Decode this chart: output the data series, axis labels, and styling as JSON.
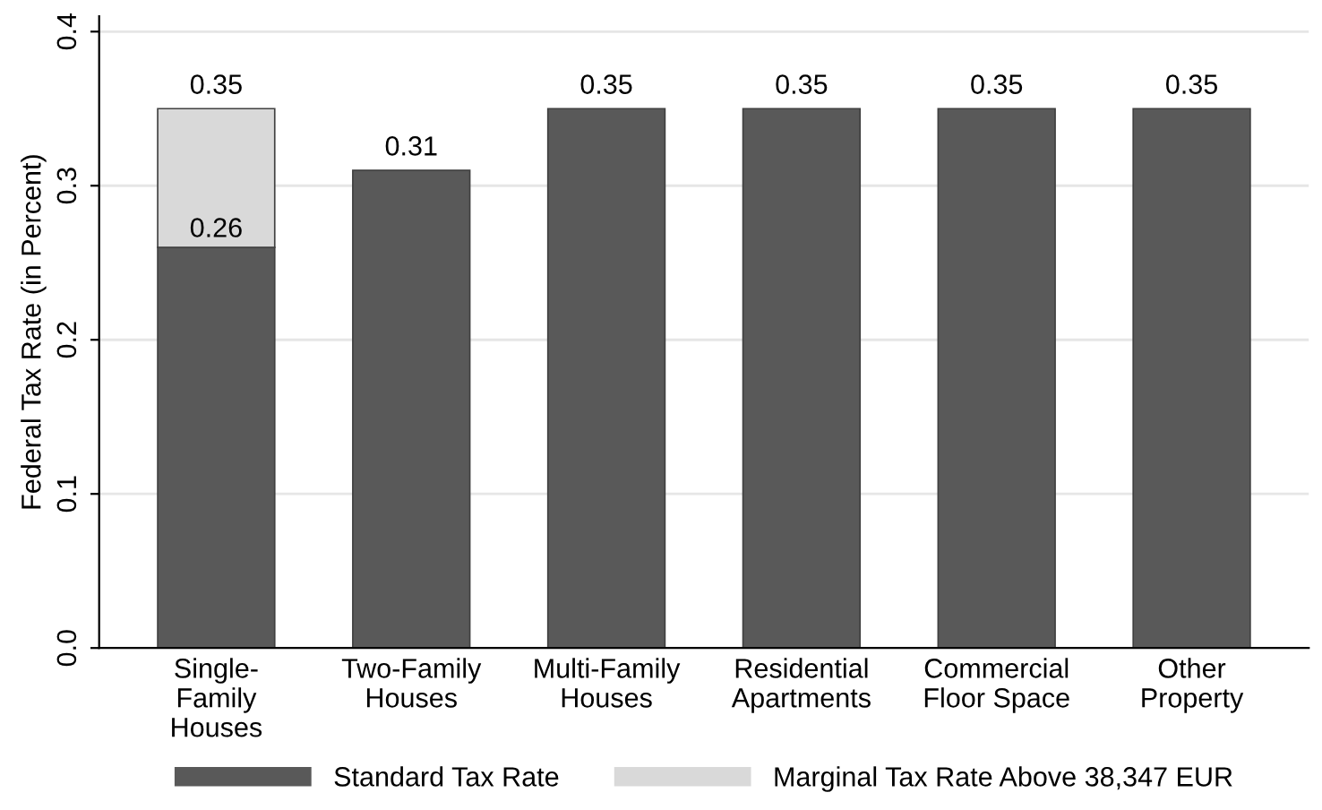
{
  "chart_data": {
    "type": "bar",
    "stacked": true,
    "ylabel": "Federal Tax Rate (in Percent)",
    "categories": [
      "Single-\nFamily\nHouses",
      "Two-Family\nHouses",
      "Multi-Family\nHouses",
      "Residential\nApartments",
      "Commercial\nFloor Space",
      "Other\nProperty"
    ],
    "series": [
      {
        "name": "Standard Tax Rate",
        "color": "#595959",
        "values": [
          0.26,
          0.31,
          0.35,
          0.35,
          0.35,
          0.35
        ],
        "value_labels": [
          "0.26",
          null,
          null,
          null,
          null,
          null
        ]
      },
      {
        "name": "Marginal Tax Rate Above 38,347 EUR",
        "color": "#d9d9d9",
        "values": [
          0.09,
          null,
          null,
          null,
          null,
          null
        ]
      }
    ],
    "totals": [
      "0.35",
      "0.31",
      "0.35",
      "0.35",
      "0.35",
      "0.35"
    ],
    "ylim": [
      0,
      0.41
    ],
    "yticks": [
      {
        "value": 0,
        "label": "0.0"
      },
      0.1,
      0.2,
      0.3,
      0.4
    ],
    "grid": "y",
    "legend": "bottom"
  }
}
